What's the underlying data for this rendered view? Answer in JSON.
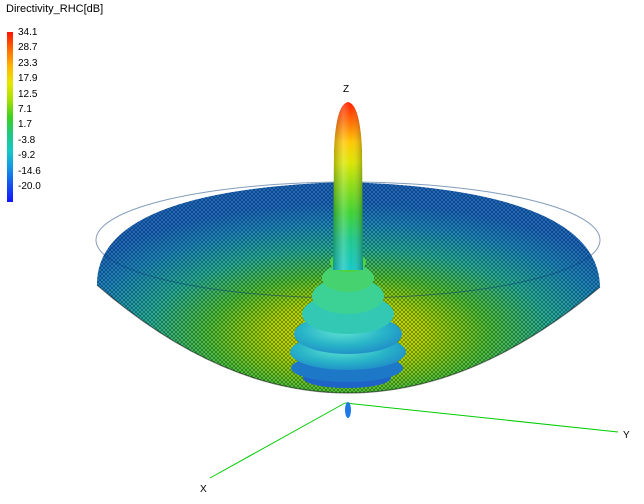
{
  "legend": {
    "title": "Directivity_RHC[dB]",
    "ticks": [
      "34.1",
      "28.7",
      "23.3",
      "17.9",
      "12.5",
      "7.1",
      "1.7",
      "-3.8",
      "-9.2",
      "-14.6",
      "-20.0"
    ],
    "color_scale": [
      "#ff1400",
      "#ffb400",
      "#e8e800",
      "#3cd21e",
      "#14c8c8",
      "#1450f0",
      "#1414ff"
    ]
  },
  "axes": {
    "x_label": "X",
    "y_label": "Y",
    "z_label": "Z"
  },
  "colors": {
    "axis_line": "#00cc00",
    "mesh_line": "#000000"
  }
}
